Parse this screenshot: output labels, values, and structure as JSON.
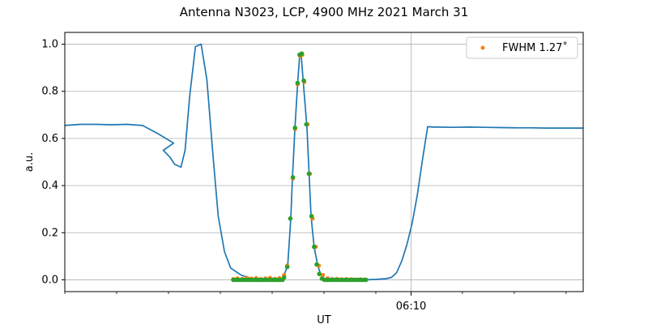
{
  "chart_data": {
    "type": "scatter",
    "title": "Antenna N3023, LCP, 4900 MHz 2021 March 31",
    "xlabel": "UT",
    "ylabel": "a.u.",
    "xlim": [
      0,
      100
    ],
    "ylim": [
      -0.05,
      1.05
    ],
    "grid": true,
    "legend_placement": "top-right",
    "x_tick_label": "06:10",
    "x_tick_position": 66.8,
    "y_ticks": [
      "0.0",
      "0.2",
      "0.4",
      "0.6",
      "0.8",
      "1.0"
    ],
    "y_tick_values": [
      0.0,
      0.2,
      0.4,
      0.6,
      0.8,
      1.0
    ],
    "colors": {
      "line": "#1f77b4",
      "orange_points": "#ff7f0e",
      "green_points": "#2ca02c"
    },
    "series": [
      {
        "kind": "line",
        "x": [
          0,
          3,
          6,
          9,
          12,
          15,
          18,
          21,
          19,
          20.3,
          21.2,
          22.4,
          23.2,
          24.1,
          25.2,
          26.3,
          27.4,
          28.5,
          29.6,
          30.8,
          32,
          34,
          36,
          38,
          40,
          42,
          42.3,
          43.0,
          43.6,
          43.9,
          44.4,
          44.9,
          45.3,
          45.6,
          46.0,
          46.7,
          47.5,
          48.1,
          48.8,
          49.4,
          50,
          52,
          54,
          56,
          58,
          60,
          62,
          63,
          64,
          65.0,
          66.0,
          67.0,
          68.0,
          69.0,
          70.0,
          71.0,
          72,
          75,
          78,
          81,
          84,
          87,
          90,
          93,
          96,
          100
        ],
        "y": [
          0.655,
          0.66,
          0.66,
          0.658,
          0.66,
          0.655,
          0.62,
          0.58,
          0.55,
          0.52,
          0.49,
          0.478,
          0.55,
          0.78,
          0.99,
          1.0,
          0.85,
          0.55,
          0.27,
          0.12,
          0.05,
          0.02,
          0.005,
          0.0,
          0.0,
          0.0,
          0.02,
          0.06,
          0.26,
          0.43,
          0.65,
          0.83,
          0.95,
          0.955,
          0.84,
          0.65,
          0.27,
          0.14,
          0.06,
          0.02,
          0.005,
          0.0,
          0.0,
          0.0,
          0.0,
          0.002,
          0.005,
          0.01,
          0.03,
          0.08,
          0.15,
          0.24,
          0.36,
          0.51,
          0.65,
          0.648,
          0.648,
          0.647,
          0.648,
          0.647,
          0.646,
          0.645,
          0.645,
          0.644,
          0.644,
          0.644
        ]
      },
      {
        "kind": "points",
        "color": "orange",
        "x": [
          32.5,
          33.3,
          34.2,
          35.1,
          36.0,
          36.9,
          37.8,
          38.7,
          39.6,
          40.5,
          41.4,
          42.3,
          42.9,
          43.5,
          44.0,
          44.4,
          44.9,
          45.4,
          45.8,
          46.2,
          46.8,
          47.3,
          47.8,
          48.4,
          49.0,
          49.8,
          50.7,
          51.6,
          52.5,
          53.4,
          54.3,
          55.2,
          56.1,
          57.0,
          57.9
        ],
        "y": [
          0.003,
          0.006,
          0.004,
          0.008,
          0.005,
          0.007,
          0.003,
          0.006,
          0.008,
          0.004,
          0.007,
          0.02,
          0.06,
          0.26,
          0.43,
          0.64,
          0.83,
          0.95,
          0.955,
          0.84,
          0.66,
          0.45,
          0.26,
          0.14,
          0.06,
          0.02,
          0.006,
          0.003,
          0.004,
          0.002,
          0.003,
          0.002,
          0.001,
          0.002,
          0.001
        ]
      },
      {
        "kind": "points",
        "color": "green",
        "x": [
          32.5,
          33.0,
          33.5,
          34.0,
          34.5,
          35.0,
          35.5,
          36.0,
          36.5,
          37.0,
          37.5,
          38.0,
          38.5,
          39.0,
          39.5,
          40.0,
          40.5,
          41.0,
          41.5,
          42.0,
          42.3,
          42.9,
          43.5,
          44.0,
          44.4,
          44.9,
          45.3,
          45.7,
          46.1,
          46.6,
          47.1,
          47.6,
          48.1,
          48.6,
          49.1,
          49.6,
          50.1,
          50.6,
          51.1,
          51.6,
          52.1,
          52.6,
          53.1,
          53.6,
          54.1,
          54.6,
          55.1,
          55.6,
          56.1,
          56.6,
          57.1,
          57.6,
          58.1
        ],
        "y": [
          0.0,
          0.0,
          0.0,
          0.0,
          0.0,
          0.0,
          0.0,
          0.0,
          0.0,
          0.0,
          0.0,
          0.0,
          0.0,
          0.0,
          0.0,
          0.0,
          0.0,
          0.0,
          0.0,
          0.0,
          0.01,
          0.055,
          0.26,
          0.435,
          0.645,
          0.835,
          0.955,
          0.96,
          0.845,
          0.66,
          0.45,
          0.27,
          0.14,
          0.065,
          0.025,
          0.005,
          0.0,
          0.0,
          0.0,
          0.0,
          0.0,
          0.0,
          0.0,
          0.0,
          0.0,
          0.0,
          0.0,
          0.0,
          0.0,
          0.0,
          0.0,
          0.0,
          0.0
        ]
      }
    ],
    "legend": {
      "label": "FWHM 1.27˚"
    }
  }
}
